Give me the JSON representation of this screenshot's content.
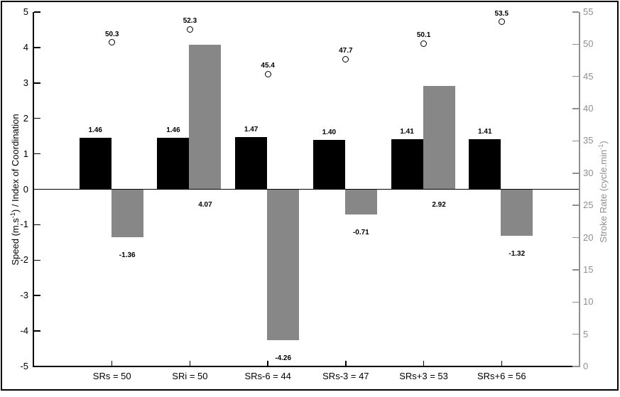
{
  "chart_data": {
    "type": "bar",
    "title": "",
    "categories": [
      "SRs = 50",
      "SRi = 50",
      "SRs-6 = 44",
      "SRs-3 = 47",
      "SRs+3 = 53",
      "SRs+6 = 56"
    ],
    "series": [
      {
        "name": "Speed",
        "plot": "bar",
        "axis": "left",
        "color": "#000000",
        "values": [
          1.46,
          1.46,
          1.47,
          1.4,
          1.41,
          1.41
        ],
        "labels": [
          "1.46",
          "1.46",
          "1.47",
          "1.40",
          "1.41",
          "1.41"
        ]
      },
      {
        "name": "Index of Coordination",
        "plot": "bar",
        "axis": "left",
        "color": "#878787",
        "values": [
          -1.36,
          4.07,
          -4.26,
          -0.71,
          2.92,
          -1.32
        ],
        "labels": [
          "-1.36",
          "4.07",
          "-4.26",
          "-0.71",
          "2.92",
          "-1.32"
        ]
      },
      {
        "name": "Stroke Rate",
        "plot": "scatter",
        "marker": "open-circle",
        "axis": "right",
        "color": "#000000",
        "values": [
          50.3,
          52.3,
          45.4,
          47.7,
          50.1,
          53.5
        ],
        "labels": [
          "50.3",
          "52.3",
          "45.4",
          "47.7",
          "50.1",
          "53.5"
        ]
      }
    ],
    "left_axis": {
      "label": "Speed (m.s-1) / Index of Coordination",
      "range": [
        -5,
        5
      ],
      "ticks": [
        5,
        4,
        3,
        2,
        1,
        0,
        -1,
        -2,
        -3,
        -4,
        -5
      ],
      "color": "#000000"
    },
    "right_axis": {
      "label": "Stroke Rate (cycle.min-1)",
      "range": [
        0,
        55
      ],
      "ticks": [
        55,
        50,
        45,
        40,
        35,
        30,
        25,
        20,
        15,
        10,
        5,
        0
      ],
      "color": "#8f8f8f"
    },
    "grid": false,
    "legend": "none"
  },
  "axis_titles": {
    "left_main": "Speed (m.s",
    "left_sup": "-1",
    "left_rest": ") / Index of Coordination",
    "right_main": "Stroke Rate (cycle.min",
    "right_sup": "-1",
    "right_rest": ")"
  }
}
